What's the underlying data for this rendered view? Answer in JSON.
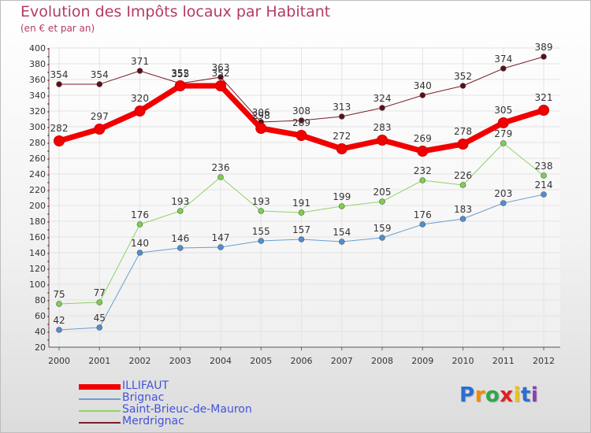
{
  "chart_data": {
    "type": "line",
    "title": "Evolution des Impôts locaux par Habitant",
    "subtitle": "(en € et par an)",
    "categories": [
      "2000",
      "2001",
      "2002",
      "2003",
      "2004",
      "2005",
      "2006",
      "2007",
      "2008",
      "2009",
      "2010",
      "2011",
      "2012"
    ],
    "ylim": [
      20,
      400
    ],
    "yticks": [
      20,
      40,
      60,
      80,
      100,
      120,
      140,
      160,
      180,
      200,
      220,
      240,
      260,
      280,
      300,
      320,
      340,
      360,
      380,
      400
    ],
    "grid": true,
    "legend_position": "bottom-left",
    "series": [
      {
        "name": "Merdrignac",
        "color": "#7a1e28",
        "marker": "#5a1016",
        "width": 1,
        "values": [
          354,
          354,
          371,
          355,
          363,
          306,
          308,
          313,
          324,
          340,
          352,
          374,
          389
        ]
      },
      {
        "name": "Saint-Brieuc-de-Mauron",
        "color": "#8fd266",
        "marker": "#7cd04c",
        "width": 1,
        "values": [
          75,
          77,
          176,
          193,
          236,
          193,
          191,
          199,
          205,
          232,
          226,
          279,
          238
        ]
      },
      {
        "name": "Brignac",
        "color": "#6b9fd1",
        "marker": "#4d8fd0",
        "width": 1,
        "values": [
          42,
          45,
          140,
          146,
          147,
          155,
          157,
          154,
          159,
          176,
          183,
          203,
          214
        ]
      },
      {
        "name": "ILLIFAUT",
        "color": "#f20000",
        "marker": "#f20000",
        "width": 7,
        "values": [
          282,
          297,
          320,
          352,
          352,
          298,
          289,
          272,
          283,
          269,
          278,
          305,
          321
        ]
      }
    ]
  },
  "legend": {
    "items": [
      {
        "label": "ILLIFAUT",
        "color": "#f20000"
      },
      {
        "label": "Brignac",
        "color": "#6b9fd1"
      },
      {
        "label": "Saint-Brieuc-de-Mauron",
        "color": "#8fd266"
      },
      {
        "label": "Merdrignac",
        "color": "#7a1e28"
      }
    ]
  },
  "logo": {
    "letters": [
      "P",
      "r",
      "o",
      "x",
      "i",
      "t",
      "i"
    ],
    "colors": [
      "#2a6fd0",
      "#f28c00",
      "#2aa84a",
      "#e02020",
      "#f2c200",
      "#2a6fd0",
      "#8b3fb5"
    ]
  }
}
